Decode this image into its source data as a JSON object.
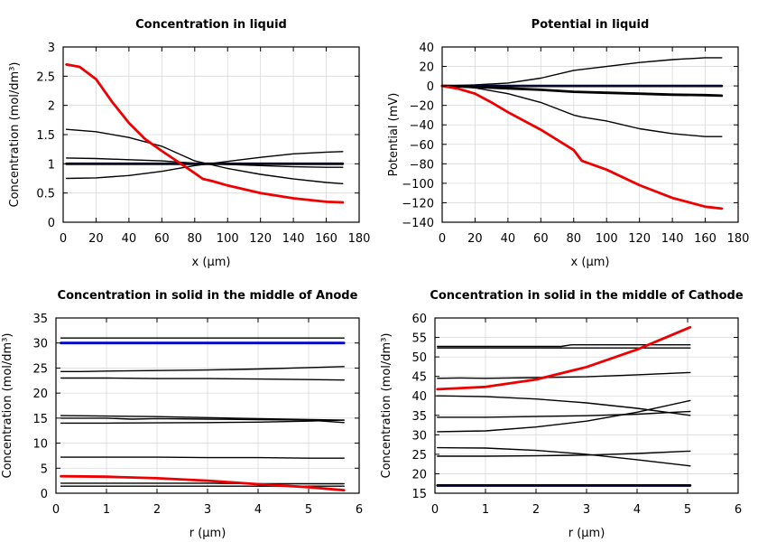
{
  "chart_data": [
    {
      "type": "line",
      "title": "Concentration in liquid",
      "xlabel": "x (µm)",
      "ylabel": "Concentration (mol/dm³)",
      "xlim": [
        0,
        180
      ],
      "ylim": [
        0,
        3
      ],
      "xticks": [
        0,
        20,
        40,
        60,
        80,
        100,
        120,
        140,
        160,
        180
      ],
      "yticks": [
        0,
        0.5,
        1,
        1.5,
        2,
        2.5,
        3
      ],
      "series": [
        {
          "name": "c1",
          "color": "#000000",
          "width": "thin",
          "x": [
            2,
            20,
            40,
            60,
            80,
            100,
            120,
            140,
            160,
            170
          ],
          "y": [
            1.59,
            1.55,
            1.45,
            1.3,
            1.05,
            0.92,
            0.82,
            0.74,
            0.68,
            0.66
          ]
        },
        {
          "name": "c2",
          "color": "#000000",
          "width": "thin",
          "x": [
            2,
            20,
            40,
            60,
            80,
            100,
            120,
            140,
            160,
            170
          ],
          "y": [
            1.1,
            1.09,
            1.07,
            1.05,
            1.01,
            0.99,
            0.97,
            0.95,
            0.94,
            0.94
          ]
        },
        {
          "name": "c3",
          "color": "#000000",
          "width": "thick",
          "x": [
            2,
            20,
            40,
            60,
            80,
            100,
            120,
            140,
            160,
            170
          ],
          "y": [
            1.0,
            1.0,
            1.0,
            1.0,
            1.0,
            1.0,
            1.0,
            1.0,
            1.0,
            1.0
          ]
        },
        {
          "name": "c4",
          "color": "#0a0a50",
          "width": "thin",
          "x": [
            2,
            20,
            40,
            60,
            80,
            100,
            120,
            140,
            160,
            170
          ],
          "y": [
            1.0,
            1.0,
            1.0,
            1.0,
            1.0,
            1.0,
            1.0,
            1.0,
            1.0,
            1.0
          ]
        },
        {
          "name": "c5",
          "color": "#000000",
          "width": "thin",
          "x": [
            2,
            20,
            40,
            60,
            80,
            100,
            120,
            140,
            160,
            170
          ],
          "y": [
            0.75,
            0.76,
            0.8,
            0.87,
            0.97,
            1.04,
            1.11,
            1.17,
            1.2,
            1.21
          ]
        },
        {
          "name": "c6",
          "color": "#ee0000",
          "width": "thick",
          "x": [
            2,
            10,
            20,
            30,
            40,
            50,
            60,
            70,
            80,
            85,
            90,
            100,
            120,
            140,
            160,
            170
          ],
          "y": [
            2.7,
            2.66,
            2.45,
            2.05,
            1.7,
            1.42,
            1.22,
            1.03,
            0.84,
            0.74,
            0.71,
            0.63,
            0.5,
            0.41,
            0.35,
            0.34
          ]
        }
      ]
    },
    {
      "type": "line",
      "title": "Potential in liquid",
      "xlabel": "x (µm)",
      "ylabel": "Potential (mV)",
      "xlim": [
        0,
        180
      ],
      "ylim": [
        -140,
        40
      ],
      "xticks": [
        0,
        20,
        40,
        60,
        80,
        100,
        120,
        140,
        160,
        180
      ],
      "yticks": [
        -140,
        -120,
        -100,
        -80,
        -60,
        -40,
        -20,
        0,
        20,
        40
      ],
      "series": [
        {
          "name": "p1",
          "color": "#000000",
          "width": "thin",
          "x": [
            0,
            20,
            40,
            60,
            80,
            100,
            120,
            140,
            160,
            170
          ],
          "y": [
            0,
            1,
            3,
            8,
            16,
            20,
            24,
            27,
            29,
            29
          ]
        },
        {
          "name": "p2",
          "color": "#000000",
          "width": "thick",
          "x": [
            0,
            20,
            40,
            60,
            80,
            100,
            120,
            140,
            160,
            170
          ],
          "y": [
            0,
            0,
            0,
            0,
            0,
            0,
            0,
            0,
            0,
            0
          ]
        },
        {
          "name": "p3",
          "color": "#0a0a50",
          "width": "thin",
          "x": [
            0,
            20,
            40,
            60,
            80,
            100,
            120,
            140,
            160,
            170
          ],
          "y": [
            0,
            0,
            0,
            0,
            0,
            0,
            0,
            0,
            0,
            0
          ]
        },
        {
          "name": "p4",
          "color": "#000000",
          "width": "thick",
          "x": [
            0,
            20,
            40,
            60,
            80,
            100,
            120,
            140,
            160,
            170
          ],
          "y": [
            0,
            -1,
            -2.5,
            -4,
            -6,
            -7,
            -8,
            -9,
            -9.5,
            -10
          ]
        },
        {
          "name": "p5",
          "color": "#000000",
          "width": "thin",
          "x": [
            0,
            20,
            40,
            60,
            80,
            85,
            100,
            120,
            140,
            160,
            170
          ],
          "y": [
            0,
            -2,
            -8,
            -17,
            -30,
            -32,
            -36,
            -44,
            -49,
            -52,
            -52
          ]
        },
        {
          "name": "p6",
          "color": "#ee0000",
          "width": "thick",
          "x": [
            0,
            10,
            20,
            30,
            40,
            60,
            80,
            85,
            100,
            120,
            140,
            160,
            170
          ],
          "y": [
            0,
            -3,
            -8,
            -17,
            -27,
            -45,
            -66,
            -77,
            -86,
            -102,
            -115,
            -124,
            -126
          ]
        }
      ]
    },
    {
      "type": "line",
      "title": "Concentration in solid in the middle of Anode",
      "xlabel": "r (µm)",
      "ylabel": "Concentration (mol/dm³)",
      "xlim": [
        0,
        6
      ],
      "ylim": [
        0,
        35
      ],
      "xticks": [
        0,
        1,
        2,
        3,
        4,
        5,
        6
      ],
      "yticks": [
        0,
        5,
        10,
        15,
        20,
        25,
        30,
        35
      ],
      "series": [
        {
          "name": "a1",
          "color": "#000000",
          "width": "thin",
          "x": [
            0.1,
            1,
            2,
            3,
            4,
            5,
            5.7
          ],
          "y": [
            31,
            31,
            31,
            31,
            31,
            31,
            31
          ]
        },
        {
          "name": "a2",
          "color": "#0000cc",
          "width": "thick",
          "x": [
            0.1,
            1,
            2,
            3,
            4,
            5,
            5.7
          ],
          "y": [
            30,
            30,
            30,
            30,
            30,
            30,
            30
          ]
        },
        {
          "name": "a3",
          "color": "#000000",
          "width": "thin",
          "x": [
            0.1,
            0.5,
            1,
            2,
            3,
            4,
            5,
            5.7
          ],
          "y": [
            24.3,
            24.3,
            24.4,
            24.5,
            24.6,
            24.8,
            25.1,
            25.3
          ]
        },
        {
          "name": "a4",
          "color": "#000000",
          "width": "thin",
          "x": [
            0.1,
            1,
            2,
            3,
            4,
            5,
            5.7
          ],
          "y": [
            23,
            23,
            22.9,
            22.9,
            22.8,
            22.7,
            22.6
          ]
        },
        {
          "name": "a5",
          "color": "#000000",
          "width": "thin",
          "x": [
            0.1,
            1,
            2,
            3,
            4,
            5,
            5.7
          ],
          "y": [
            15.5,
            15.4,
            15.3,
            15.1,
            14.9,
            14.7,
            14.6
          ]
        },
        {
          "name": "a6",
          "color": "#000000",
          "width": "thin",
          "x": [
            0.1,
            1,
            1.5,
            2,
            3,
            4,
            5,
            5.7
          ],
          "y": [
            15,
            15,
            14.8,
            14.9,
            14.8,
            14.7,
            14.6,
            14.1
          ]
        },
        {
          "name": "a7",
          "color": "#000000",
          "width": "thin",
          "x": [
            0.1,
            1,
            2,
            3,
            4,
            5,
            5.7
          ],
          "y": [
            14,
            14,
            14.05,
            14.1,
            14.2,
            14.4,
            14.6
          ]
        },
        {
          "name": "a8",
          "color": "#000000",
          "width": "thin",
          "x": [
            0.1,
            1,
            2,
            3,
            4,
            5,
            5.7
          ],
          "y": [
            7.2,
            7.2,
            7.2,
            7.1,
            7.1,
            7.0,
            7.0
          ]
        },
        {
          "name": "a9",
          "color": "#000000",
          "width": "thin",
          "x": [
            0.1,
            1,
            2,
            3,
            4,
            5,
            5.7
          ],
          "y": [
            2.0,
            2.0,
            2.0,
            2.0,
            1.9,
            1.9,
            1.9
          ]
        },
        {
          "name": "a10",
          "color": "#000000",
          "width": "thin",
          "x": [
            0.1,
            1,
            2,
            3,
            4,
            5,
            5.7
          ],
          "y": [
            1.4,
            1.4,
            1.4,
            1.4,
            1.4,
            1.4,
            1.4
          ]
        },
        {
          "name": "a11",
          "color": "#ee0000",
          "width": "thick",
          "x": [
            0.1,
            1,
            2,
            3,
            4,
            5,
            5.7
          ],
          "y": [
            3.4,
            3.3,
            3.0,
            2.5,
            1.8,
            1.2,
            0.6
          ]
        }
      ]
    },
    {
      "type": "line",
      "title": "Concentration in solid in the middle of Cathode",
      "xlabel": "r (µm)",
      "ylabel": "Concentration (mol/dm³)",
      "xlim": [
        0,
        6
      ],
      "ylim": [
        15,
        60
      ],
      "xticks": [
        0,
        1,
        2,
        3,
        4,
        5,
        6
      ],
      "yticks": [
        15,
        20,
        25,
        30,
        35,
        40,
        45,
        50,
        55,
        60
      ],
      "series": [
        {
          "name": "k1",
          "color": "#000000",
          "width": "thin",
          "x": [
            0.05,
            1,
            2,
            2.5,
            2.7,
            3,
            4,
            5.05
          ],
          "y": [
            52.7,
            52.7,
            52.7,
            52.7,
            53.1,
            53.1,
            53.1,
            53.1
          ]
        },
        {
          "name": "k2",
          "color": "#000000",
          "width": "thin",
          "x": [
            0.05,
            1,
            2,
            3,
            4,
            5.05
          ],
          "y": [
            52.3,
            52.3,
            52.3,
            52.3,
            52.3,
            52.3
          ]
        },
        {
          "name": "k3",
          "color": "#000000",
          "width": "thin",
          "x": [
            0.05,
            0.5,
            1,
            2,
            3,
            4,
            5.05
          ],
          "y": [
            44.5,
            44.6,
            44.5,
            44.7,
            44.9,
            45.4,
            46.0
          ]
        },
        {
          "name": "k4",
          "color": "#000000",
          "width": "thin",
          "x": [
            0.05,
            1,
            2,
            3,
            4,
            5.05
          ],
          "y": [
            40,
            39.8,
            39.2,
            38.2,
            36.8,
            35.0
          ]
        },
        {
          "name": "k5",
          "color": "#000000",
          "width": "thin",
          "x": [
            0.05,
            1,
            2,
            3,
            4,
            5.05
          ],
          "y": [
            34.5,
            34.5,
            34.7,
            34.9,
            35.3,
            36.0
          ]
        },
        {
          "name": "k6",
          "color": "#000000",
          "width": "thin",
          "x": [
            0.05,
            1,
            2,
            3,
            4,
            5.05
          ],
          "y": [
            30.8,
            31.0,
            32.0,
            33.5,
            35.8,
            38.8
          ]
        },
        {
          "name": "k7",
          "color": "#000000",
          "width": "thin",
          "x": [
            0.05,
            1,
            2,
            3,
            4,
            5.05
          ],
          "y": [
            26.7,
            26.6,
            26.0,
            25.0,
            23.6,
            22.0
          ]
        },
        {
          "name": "k8",
          "color": "#000000",
          "width": "thin",
          "x": [
            0.05,
            1,
            2,
            3,
            4,
            5.05
          ],
          "y": [
            24.5,
            24.5,
            24.6,
            24.8,
            25.2,
            25.8
          ]
        },
        {
          "name": "k9",
          "color": "#000000",
          "width": "thick",
          "x": [
            0.05,
            1,
            2,
            3,
            4,
            5.05
          ],
          "y": [
            17,
            17,
            17,
            17,
            17,
            17
          ]
        },
        {
          "name": "k10",
          "color": "#0a0a50",
          "width": "thin",
          "x": [
            0.05,
            1,
            2,
            3,
            4,
            5.05
          ],
          "y": [
            16.8,
            16.8,
            16.8,
            16.8,
            16.8,
            16.8
          ]
        },
        {
          "name": "k11",
          "color": "#ee0000",
          "width": "thick",
          "x": [
            0.05,
            1,
            2,
            3,
            4,
            5.05
          ],
          "y": [
            41.7,
            42.3,
            44.2,
            47.4,
            51.9,
            57.6
          ]
        }
      ]
    }
  ]
}
